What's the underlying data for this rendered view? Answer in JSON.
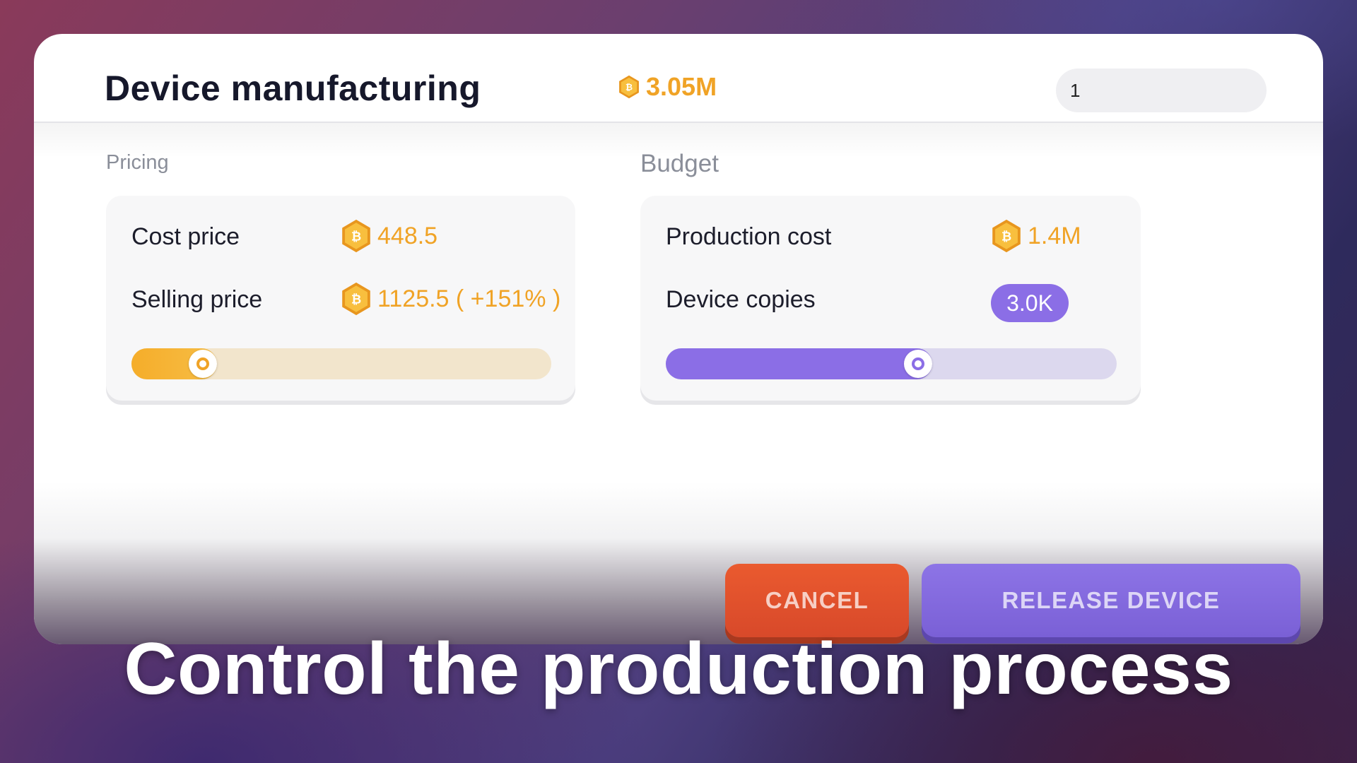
{
  "header": {
    "title": "Device manufacturing",
    "balance": "3.05M",
    "input_value": "1"
  },
  "pricing": {
    "section_label": "Pricing",
    "cost_price_label": "Cost price",
    "cost_price_value": "448.5",
    "selling_price_label": "Selling price",
    "selling_price_value": "1125.5 ( +151% )",
    "slider_level_percent": 17
  },
  "budget": {
    "section_label": "Budget",
    "production_cost_label": "Production cost",
    "production_cost_value": "1.4M",
    "device_copies_label": "Device copies",
    "device_copies_value": "3.0K",
    "slider_level_percent": 56
  },
  "buttons": {
    "cancel_label": "CANCEL",
    "release_label": "RELEASE DEVICE"
  },
  "caption": "Control the production process",
  "colors": {
    "accent_gold": "#f0a326",
    "accent_purple": "#8b6ee6",
    "cancel_orange": "#e4532c",
    "slider_gold_track": "#f2e5cc",
    "slider_purple_track": "#dcd8ee"
  },
  "icons": {
    "currency": "bitcoin-coin-icon"
  }
}
